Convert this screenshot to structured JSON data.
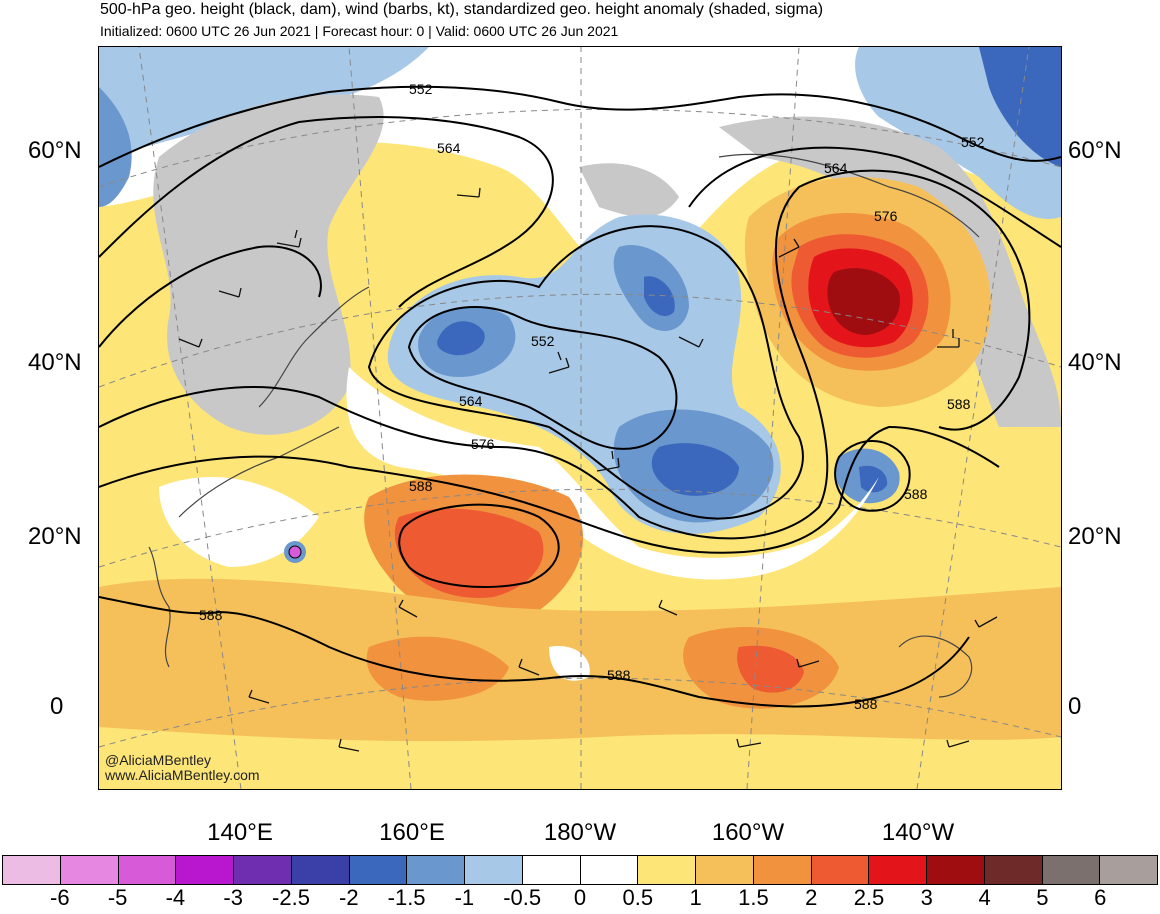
{
  "header": {
    "title": "500-hPa geo. height (black, dam), wind (barbs, kt), standardized geo. height anomaly (shaded, sigma)",
    "subtitle": "Initialized: 0600 UTC 26 Jun 2021 | Forecast hour: 0 | Valid: 0600 UTC 26 Jun 2021"
  },
  "map": {
    "lat_labels_left": [
      "60°N",
      "40°N",
      "20°N",
      "0"
    ],
    "lat_labels_right": [
      "60°N",
      "40°N",
      "20°N",
      "0"
    ],
    "lon_labels": [
      "140°E",
      "160°E",
      "180°W",
      "160°W",
      "140°W"
    ],
    "contour_labels": [
      "552",
      "564",
      "552",
      "564",
      "576",
      "588",
      "564",
      "576",
      "552",
      "588",
      "588",
      "588",
      "588"
    ],
    "watermark": [
      "@AliciaMBentley",
      "www.AliciaMBentley.com"
    ]
  },
  "colorbar": {
    "ticks": [
      "-6",
      "-5",
      "-4",
      "-3",
      "-2.5",
      "-2",
      "-1.5",
      "-1",
      "-0.5",
      "0",
      "0.5",
      "1",
      "1.5",
      "2",
      "2.5",
      "3",
      "4",
      "5",
      "6"
    ],
    "colors": [
      "#ecbce4",
      "#e688e2",
      "#d75ad8",
      "#b816cf",
      "#6f2db0",
      "#3a40a8",
      "#3b68bc",
      "#6b97cf",
      "#a7c8e6",
      "#ffffff",
      "#ffffff",
      "#fde577",
      "#f5c05a",
      "#f1923f",
      "#ee5a32",
      "#e4151a",
      "#a00d10",
      "#6e2a28",
      "#7b706e",
      "#a89e9c"
    ]
  }
}
